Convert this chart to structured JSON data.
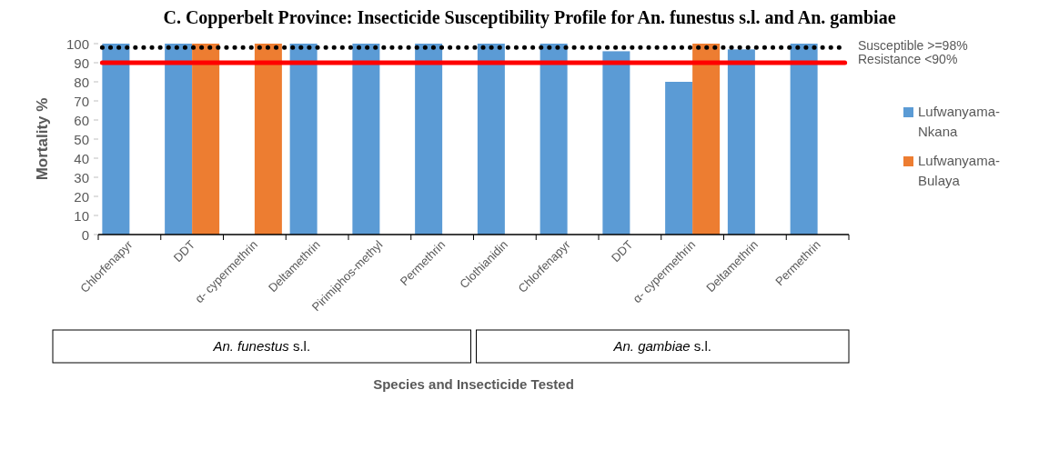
{
  "chart_data": {
    "type": "bar",
    "title": "C. Copperbelt Province: Insecticide Susceptibility Profile for An. funestus s.l. and An. gambiae",
    "xlabel": "Species and Insecticide Tested",
    "ylabel": "Mortality %",
    "categories": [
      "Chlorfenapyr",
      "DDT",
      "α- cypermethrin",
      "Deltamethrin",
      "Pirimiphos-methyl",
      "Permethrin",
      "Clothianidin",
      "Chlorfenapyr",
      "DDT",
      "α- cypermethrin",
      "Deltamethrin",
      "Permethrin"
    ],
    "series": [
      {
        "name": "Lufwanyama-Nkana",
        "color": "#5b9bd5",
        "values": [
          100,
          100,
          null,
          100,
          100,
          100,
          100,
          100,
          96,
          80,
          97,
          100
        ]
      },
      {
        "name": "Lufwanyama-Bulaya",
        "color": "#ed7d31",
        "values": [
          null,
          100,
          100,
          null,
          null,
          null,
          null,
          null,
          null,
          100,
          null,
          null
        ]
      }
    ],
    "ylim": [
      0,
      100
    ],
    "yticks": [
      0,
      10,
      20,
      30,
      40,
      50,
      60,
      70,
      80,
      90,
      100
    ],
    "grid": false,
    "legend": "right",
    "ref_lines": [
      {
        "axis": "y",
        "value": 98,
        "label": "Susceptible >=98%",
        "color": "#000000",
        "line_style": "dotted"
      },
      {
        "axis": "y",
        "value": 90,
        "label": "Resistance <90%",
        "color": "#ff0000",
        "line_style": "solid"
      }
    ],
    "annotations": [
      "An. funestus s.l.",
      "An. gambiae s.l."
    ]
  }
}
